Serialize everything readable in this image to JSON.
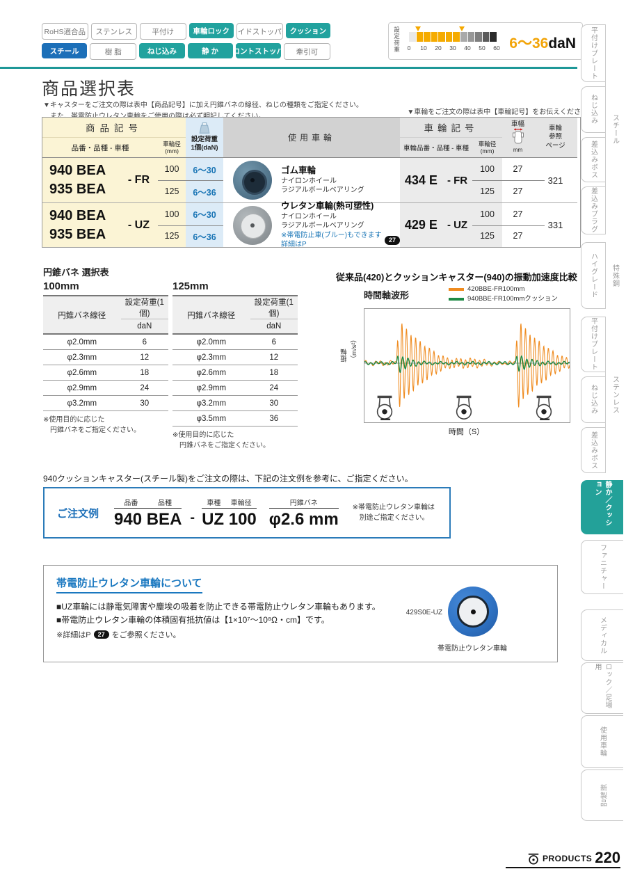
{
  "badges": {
    "rows": [
      [
        {
          "label": "RoHS適合品",
          "style": "outline"
        },
        {
          "label": "ステンレス",
          "style": "outline"
        },
        {
          "label": "平付け",
          "style": "outline"
        },
        {
          "label": "車輪ロック",
          "style": "teal"
        },
        {
          "label": "サイドストッパー",
          "style": "outline"
        },
        {
          "label": "クッション",
          "style": "teal"
        }
      ],
      [
        {
          "label": "スチール",
          "style": "blue"
        },
        {
          "label": "樹 脂",
          "style": "outline"
        },
        {
          "label": "ねじ込み",
          "style": "teal"
        },
        {
          "label": "静 か",
          "style": "teal"
        },
        {
          "label": "フロントストッパー",
          "style": "teal"
        },
        {
          "label": "牽引可",
          "style": "outline"
        }
      ]
    ],
    "teal_color": "#21a29e",
    "blue_color": "#1c6fb8"
  },
  "load_scale": {
    "label": "設定荷重",
    "ticks": [
      "0",
      "10",
      "20",
      "30",
      "40",
      "50",
      "60"
    ],
    "segments": [
      "#e9e9e9",
      "#f5ab00",
      "#f5ab00",
      "#f5ab00",
      "#f5ab00",
      "#f5ab00",
      "#f5ab00",
      "#a9a9a9",
      "#979797",
      "#7e7e7e",
      "#5a5a5a",
      "#2b2b2b"
    ],
    "markers": [
      6,
      36
    ],
    "range": "6～36",
    "unit": "daN"
  },
  "header": {
    "title": "商品選択表",
    "note1": "▼キャスターをご注文の際は表中【商品記号】に加え円錐バネの線径、ねじの種類をご指定ください。",
    "note2": "また、帯電防止ウレタン車輪をご使用の際は必ず明記してください。",
    "note_right": "▼車輪をご注文の際は表中【車輪記号】をお伝えください。"
  },
  "product_table": {
    "headers": {
      "product_code": "商品記号",
      "product_sub": "品番・品種 - 車種",
      "dia": "車輪径",
      "dia_unit": "(mm)",
      "load1": "設定荷重",
      "load2": "1個(daN)",
      "wheel_used": "使用車輪",
      "wheel_code": "車輪記号",
      "wheel_sub": "車輪品番・品種 - 車種",
      "dia2": "車輪径",
      "dia2_unit": "(mm)",
      "width": "車幅",
      "width_unit": "mm",
      "ref1": "車輪",
      "ref2": "参照",
      "ref3": "ページ"
    },
    "rows": [
      {
        "codes": [
          "940 BEA",
          "935 BEA"
        ],
        "type": "- FR",
        "dias": [
          "100",
          "125"
        ],
        "loads": [
          "6～30",
          "6～36"
        ],
        "wheel": {
          "name": "ゴム車輪",
          "line1": "ナイロンホイール",
          "line2": "ラジアルボールベアリング"
        },
        "wheel_code": "434 E",
        "wheel_type": "- FR",
        "wdias": [
          "100",
          "125"
        ],
        "widths": [
          "27",
          "27"
        ],
        "ref": "321"
      },
      {
        "codes": [
          "940 BEA",
          "935 BEA"
        ],
        "type": "- UZ",
        "dias": [
          "100",
          "125"
        ],
        "loads": [
          "6～30",
          "6～36"
        ],
        "wheel": {
          "name": "ウレタン車輪(熱可塑性)",
          "line1": "ナイロンホイール",
          "line2": "ラジアルボールベアリング",
          "note": "※帯電防止車(ブルー)もできます　詳細はP",
          "note_badge": "27"
        },
        "wheel_code": "429 E",
        "wheel_type": "- UZ",
        "wdias": [
          "100",
          "125"
        ],
        "widths": [
          "27",
          "27"
        ],
        "ref": "331"
      }
    ]
  },
  "spring": {
    "title": "円錐バネ 選択表",
    "tables": [
      {
        "size": "100mm",
        "col1": "円錐バネ線径",
        "col2": "設定荷重(1個)",
        "col2b": "daN",
        "rows": [
          [
            "φ2.0mm",
            "6"
          ],
          [
            "φ2.3mm",
            "12"
          ],
          [
            "φ2.6mm",
            "18"
          ],
          [
            "φ2.9mm",
            "24"
          ],
          [
            "φ3.2mm",
            "30"
          ]
        ],
        "note1": "※使用目的に応じた",
        "note2": "　円錐バネをご指定ください。"
      },
      {
        "size": "125mm",
        "col1": "円錐バネ線径",
        "col2": "設定荷重(1個)",
        "col2b": "daN",
        "rows": [
          [
            "φ2.0mm",
            "6"
          ],
          [
            "φ2.3mm",
            "12"
          ],
          [
            "φ2.6mm",
            "18"
          ],
          [
            "φ2.9mm",
            "24"
          ],
          [
            "φ3.2mm",
            "30"
          ],
          [
            "φ3.5mm",
            "36"
          ]
        ],
        "note1": "※使用目的に応じた",
        "note2": "　円錐バネをご指定ください。"
      }
    ]
  },
  "vibration_chart": {
    "type": "line",
    "title": "従来品(420)とクッションキャスター(940)の振動加速度比較",
    "subtitle": "時間軸波形",
    "ylabel": "振幅（m/s²）",
    "xlabel": "時間（S）",
    "legend_position": "top-right",
    "grid": false,
    "bursts": [
      0.155,
      0.735
    ],
    "series": [
      {
        "name": "420BBE-FR100mm",
        "color": "#ef8b1f",
        "amp": 72,
        "decay": 8,
        "freq": 283,
        "base": [
          [
            260,
            2.5,
            0
          ],
          [
            97,
            1.5,
            1.3
          ]
        ]
      },
      {
        "name": "940BBE-FR100mmクッション",
        "color": "#1d8a45",
        "amp": 16,
        "decay": 20,
        "freq": 250,
        "base": [
          [
            240,
            1.6,
            0.4
          ],
          [
            83,
            1.0,
            2.1
          ]
        ]
      }
    ]
  },
  "order": {
    "intro": "940クッションキャスター(スチール製)をご注文の際は、下記の注文例を参考に、ご指定ください。",
    "label": "ご注文例",
    "separator": "-",
    "groups": [
      {
        "label_a": "品番",
        "label_b": "品種",
        "value": "940 BEA"
      },
      {
        "label_a": "車種",
        "label_b": "車輪径",
        "value": "UZ 100"
      },
      {
        "label_a": "円錐バネ",
        "value": "φ2.6 mm"
      }
    ],
    "note1": "※帯電防止ウレタン車輪は",
    "note2": "　別途ご指定ください。"
  },
  "antistatic": {
    "title": "帯電防止ウレタン車輪について",
    "line1": "■UZ車輪には静電気障害や塵埃の吸着を防止できる帯電防止ウレタン車輪もあります。",
    "line2": "■帯電防止ウレタン車輪の体積固有抵抗値は【1×10⁷～10⁸Ω・cm】です。",
    "line3_pre": "※詳細はP",
    "line3_badge": "27",
    "line3_post": "をご参照ください。",
    "wheel_label": "429S0E-UZ",
    "wheel_caption": "帯電防止ウレタン車輪"
  },
  "sidebar": {
    "groups": [
      {
        "label": "スチール",
        "tabs": [
          "平付けプレート",
          "ねじ込み",
          "差込みボス",
          "差込みプラグ"
        ]
      },
      {
        "label": "特殊鋼",
        "tabs": [
          "ハイグレード"
        ]
      },
      {
        "label": "ステンレス",
        "tabs": [
          "平付けプレート",
          "ねじ込み",
          "差込みボス"
        ]
      }
    ],
    "wide_tabs": [
      {
        "label": "静か／クッション",
        "active": true
      },
      {
        "label": "ファニチャー",
        "active": false
      },
      {
        "label": "メディカル",
        "active": false
      },
      {
        "label": "ロック／足場用",
        "active": false
      },
      {
        "label": "使用車輪",
        "active": false
      },
      {
        "label": "新製品",
        "active": false
      }
    ],
    "active_color": "#23a199"
  },
  "footer": {
    "brand": "PRODUCTS",
    "page": "220"
  }
}
